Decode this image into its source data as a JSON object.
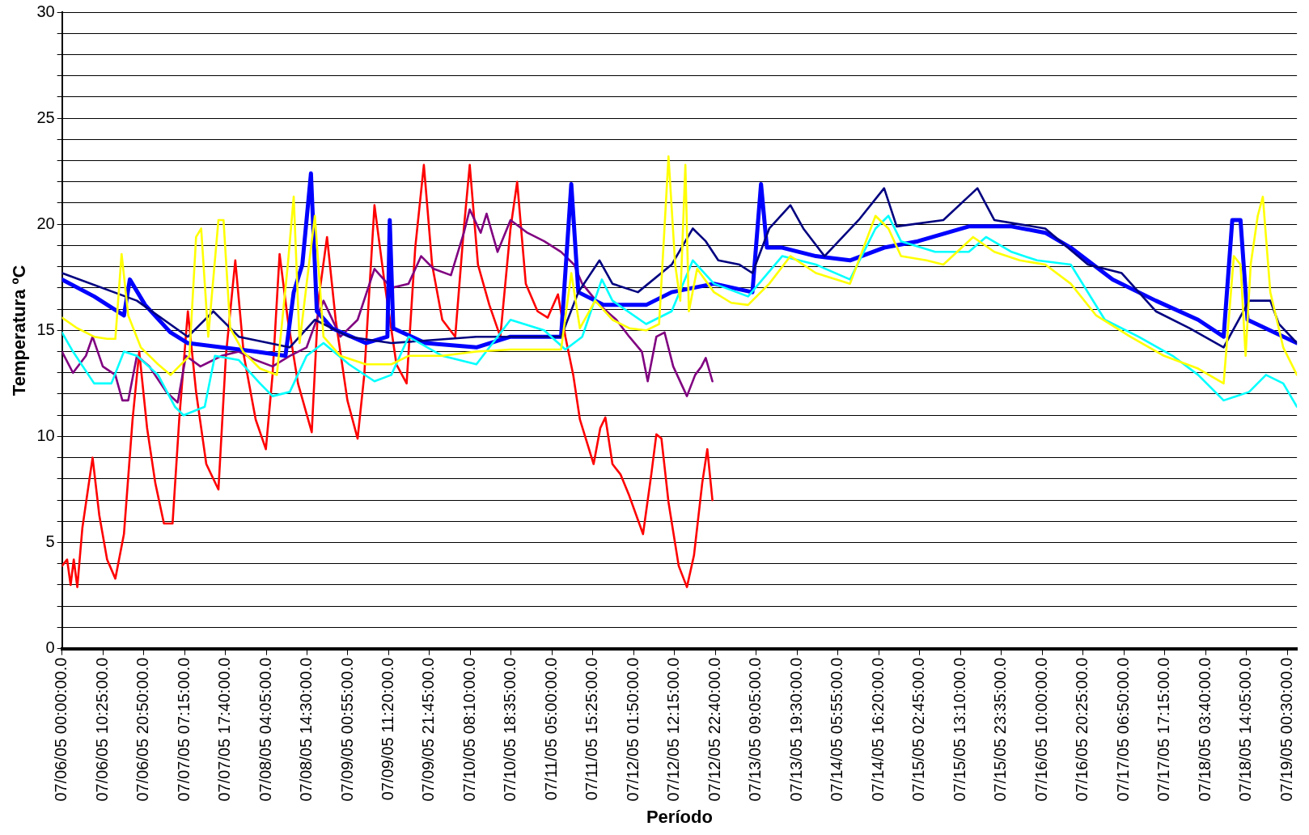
{
  "chart_data": {
    "type": "line",
    "xlabel": "Período",
    "ylabel": "Temperatura ºC",
    "xlim": [
      "--07-06T00:00",
      "--07-19T03:00"
    ],
    "ylim": [
      0,
      30
    ],
    "xticks": [
      {
        "value": "--07-06T00:00",
        "label": "07/06/05 00:00:00.0"
      },
      {
        "value": "--07-06T10:25",
        "label": "07/06/05 10:25:00.0"
      },
      {
        "value": "--07-06T20:50",
        "label": "07/06/05 20:50:00.0"
      },
      {
        "value": "--07-07T07:15",
        "label": "07/07/05 07:15:00.0"
      },
      {
        "value": "--07-07T17:40",
        "label": "07/07/05 17:40:00.0"
      },
      {
        "value": "--07-08T04:05",
        "label": "07/08/05 04:05:00.0"
      },
      {
        "value": "--07-08T14:30",
        "label": "07/08/05 14:30:00.0"
      },
      {
        "value": "--07-09T00:55",
        "label": "07/09/05 00:55:00.0"
      },
      {
        "value": "--07-09T11:20",
        "label": "07/09/05 11:20:00.0"
      },
      {
        "value": "--07-09T21:45",
        "label": "07/09/05 21:45:00.0"
      },
      {
        "value": "--07-10T08:10",
        "label": "07/10/05 08:10:00.0"
      },
      {
        "value": "--07-10T18:35",
        "label": "07/10/05 18:35:00.0"
      },
      {
        "value": "--07-11T05:00",
        "label": "07/11/05 05:00:00.0"
      },
      {
        "value": "--07-11T15:25",
        "label": "07/11/05 15:25:00.0"
      },
      {
        "value": "--07-12T01:50",
        "label": "07/12/05 01:50:00.0"
      },
      {
        "value": "--07-12T12:15",
        "label": "07/12/05 12:15:00.0"
      },
      {
        "value": "--07-12T22:40",
        "label": "07/12/05 22:40:00.0"
      },
      {
        "value": "--07-13T09:05",
        "label": "07/13/05 09:05:00.0"
      },
      {
        "value": "--07-13T19:30",
        "label": "07/13/05 19:30:00.0"
      },
      {
        "value": "--07-14T05:55",
        "label": "07/14/05 05:55:00.0"
      },
      {
        "value": "--07-14T16:20",
        "label": "07/14/05 16:20:00.0"
      },
      {
        "value": "--07-15T02:45",
        "label": "07/15/05 02:45:00.0"
      },
      {
        "value": "--07-15T13:10",
        "label": "07/15/05 13:10:00.0"
      },
      {
        "value": "--07-15T23:35",
        "label": "07/15/05 23:35:00.0"
      },
      {
        "value": "--07-16T10:00",
        "label": "07/16/05 10:00:00.0"
      },
      {
        "value": "--07-16T20:25",
        "label": "07/16/05 20:25:00.0"
      },
      {
        "value": "--07-17T06:50",
        "label": "07/17/05 06:50:00.0"
      },
      {
        "value": "--07-17T17:15",
        "label": "07/17/05 17:15:00.0"
      },
      {
        "value": "--07-18T03:40",
        "label": "07/18/05 03:40:00.0"
      },
      {
        "value": "--07-18T14:05",
        "label": "07/18/05 14:05:00.0"
      },
      {
        "value": "--07-19T00:30",
        "label": "07/19/05 00:30:00.0"
      }
    ],
    "yticks": [
      0,
      {
        "value": 1,
        "label": null
      },
      {
        "value": 2,
        "label": null
      },
      {
        "value": 3,
        "label": null
      },
      {
        "value": 4,
        "label": null
      },
      5,
      {
        "value": 6,
        "label": null
      },
      {
        "value": 7,
        "label": null
      },
      {
        "value": 8,
        "label": null
      },
      {
        "value": 9,
        "label": null
      },
      10,
      {
        "value": 11,
        "label": null
      },
      {
        "value": 12,
        "label": null
      },
      {
        "value": 13,
        "label": null
      },
      {
        "value": 14,
        "label": null
      },
      15,
      {
        "value": 16,
        "label": null
      },
      {
        "value": 17,
        "label": null
      },
      {
        "value": 18,
        "label": null
      },
      {
        "value": 19,
        "label": null
      },
      20,
      {
        "value": 21,
        "label": null
      },
      {
        "value": 22,
        "label": null
      },
      {
        "value": 23,
        "label": null
      },
      {
        "value": 24,
        "label": null
      },
      25,
      {
        "value": 26,
        "label": null
      },
      {
        "value": 27,
        "label": null
      },
      {
        "value": 28,
        "label": null
      },
      {
        "value": 29,
        "label": null
      },
      30
    ],
    "grid": "y",
    "legend": false,
    "marker": "none",
    "line_style": "solid",
    "series": [
      {
        "color": "#ffff00",
        "x": [
          "--07-06T00:00",
          "--07-06T03:54",
          "--07-06T08:12",
          "--07-06T11:30",
          "--07-06T13:36",
          "--07-06T15:12",
          "--07-06T16:54",
          "--07-06T20:06",
          "--07-07T00:30",
          "--07-07T03:42",
          "--07-07T08:30",
          "--07-07T10:12",
          "--07-07T11:30",
          "--07-07T13:18",
          "--07-07T15:54",
          "--07-07T17:12",
          "--07-07T18:54",
          "--07-07T22:12",
          "--07-08T02:30",
          "--07-08T06:48",
          "--07-08T09:36",
          "--07-08T11:06",
          "--07-08T12:36",
          "--07-08T14:24",
          "--07-08T16:30",
          "--07-08T18:42",
          "--07-08T23:00",
          "--07-09T05:30",
          "--07-09T12:00",
          "--07-09T16:24",
          "--07-10T01:00",
          "--07-10T09:42",
          "--07-10T18:24",
          "--07-11T07:18",
          "--07-11T09:54",
          "--07-11T12:06",
          "--07-11T16:00",
          "--07-11T20:24",
          "--07-12T00:42",
          "--07-12T05:00",
          "--07-12T08:18",
          "--07-12T10:42",
          "--07-12T12:24",
          "--07-12T13:42",
          "--07-12T15:00",
          "--07-12T15:54",
          "--07-12T18:00",
          "--07-12T22:18",
          "--07-13T02:42",
          "--07-13T07:00",
          "--07-13T12:24",
          "--07-13T17:48",
          "--07-14T00:18",
          "--07-14T09:00",
          "--07-14T15:30",
          "--07-14T18:48",
          "--07-14T22:00",
          "--07-15T04:30",
          "--07-15T08:48",
          "--07-15T16:24",
          "--07-15T21:48",
          "--07-16T04:18",
          "--07-16T10:48",
          "--07-16T17:18",
          "--07-16T23:48",
          "--07-17T08:30",
          "--07-17T17:06",
          "--07-18T01:48",
          "--07-18T08:18",
          "--07-18T10:54",
          "--07-18T12:36",
          "--07-18T13:54",
          "--07-18T15:12",
          "--07-18T17:00",
          "--07-18T18:18",
          "--07-18T20:12",
          "--07-18T23:30",
          "--07-19T03:00"
        ],
        "values": [
          15.6,
          15.1,
          14.7,
          14.6,
          14.6,
          18.6,
          15.7,
          14.2,
          13.4,
          12.9,
          13.8,
          19.4,
          19.8,
          14.7,
          20.2,
          20.2,
          15.1,
          14.0,
          13.2,
          12.9,
          18.1,
          21.3,
          14.4,
          17.2,
          20.4,
          14.7,
          13.8,
          13.4,
          13.4,
          13.8,
          13.8,
          14.0,
          14.1,
          14.1,
          17.7,
          15.1,
          16.4,
          15.5,
          15.1,
          15.0,
          15.3,
          23.2,
          18.1,
          16.4,
          22.8,
          15.9,
          17.9,
          16.8,
          16.3,
          16.2,
          17.2,
          18.5,
          17.7,
          17.2,
          20.4,
          19.8,
          18.5,
          18.3,
          18.1,
          19.4,
          18.7,
          18.3,
          18.1,
          17.2,
          15.7,
          14.7,
          13.8,
          13.2,
          12.5,
          18.5,
          18.1,
          13.8,
          18.1,
          20.4,
          21.3,
          16.8,
          14.2,
          12.9
        ]
      },
      {
        "color": "#00ffff",
        "x": [
          "--07-06T00:00",
          "--07-06T02:48",
          "--07-06T08:12",
          "--07-06T12:36",
          "--07-06T15:48",
          "--07-06T19:06",
          "--07-07T00:30",
          "--07-07T04:48",
          "--07-07T07:00",
          "--07-07T12:24",
          "--07-07T15:00",
          "--07-07T21:06",
          "--07-08T02:30",
          "--07-08T05:42",
          "--07-08T10:06",
          "--07-08T14:24",
          "--07-08T18:42",
          "--07-09T01:12",
          "--07-09T07:42",
          "--07-09T12:00",
          "--07-09T16:24",
          "--07-10T01:00",
          "--07-10T09:42",
          "--07-10T18:24",
          "--07-11T03:00",
          "--07-11T08:24",
          "--07-11T12:42",
          "--07-11T14:54",
          "--07-11T17:42",
          "--07-11T20:24",
          "--07-12T05:00",
          "--07-12T11:30",
          "--07-12T16:54",
          "--07-12T22:18",
          "--07-13T07:00",
          "--07-13T15:42",
          "--07-14T00:18",
          "--07-14T09:00",
          "--07-14T15:30",
          "--07-14T18:48",
          "--07-14T22:00",
          "--07-15T06:42",
          "--07-15T15:18",
          "--07-15T19:42",
          "--07-16T02:12",
          "--07-16T08:42",
          "--07-16T17:18",
          "--07-17T02:00",
          "--07-17T10:36",
          "--07-17T19:18",
          "--07-18T01:48",
          "--07-18T08:18",
          "--07-18T14:48",
          "--07-18T19:06",
          "--07-18T23:30",
          "--07-19T03:00"
        ],
        "values": [
          14.9,
          14.0,
          12.5,
          12.5,
          14.0,
          13.8,
          12.9,
          11.4,
          11.0,
          11.4,
          13.8,
          13.6,
          12.5,
          11.9,
          12.1,
          13.8,
          14.4,
          13.4,
          12.6,
          12.9,
          14.7,
          13.8,
          13.4,
          15.5,
          15.0,
          14.1,
          14.7,
          15.9,
          17.4,
          16.4,
          15.3,
          15.9,
          18.3,
          17.2,
          16.6,
          18.5,
          18.1,
          17.4,
          19.8,
          20.4,
          19.2,
          18.7,
          18.7,
          19.4,
          18.7,
          18.3,
          18.1,
          15.5,
          14.7,
          13.8,
          12.9,
          11.7,
          12.1,
          12.9,
          12.5,
          11.4
        ]
      },
      {
        "color": "#000080",
        "x": [
          "--07-06T00:00",
          "--07-06T19:06",
          "--07-07T08:06",
          "--07-07T14:36",
          "--07-07T21:06",
          "--07-08T10:06",
          "--07-08T16:30",
          "--07-09T01:12",
          "--07-09T12:00",
          "--07-10T09:42",
          "--07-11T07:18",
          "--07-11T11:42",
          "--07-11T17:06",
          "--07-11T20:24",
          "--07-12T02:54",
          "--07-12T11:30",
          "--07-12T16:54",
          "--07-12T20:12",
          "--07-12T23:24",
          "--07-13T04:48",
          "--07-13T08:06",
          "--07-13T12:24",
          "--07-13T17:48",
          "--07-13T21:06",
          "--07-14T02:30",
          "--07-14T11:12",
          "--07-14T17:42",
          "--07-14T20:54",
          "--07-15T08:48",
          "--07-15T17:30",
          "--07-15T21:48",
          "--07-16T10:48",
          "--07-16T21:42",
          "--07-17T06:18",
          "--07-17T15:00",
          "--07-17T23:36",
          "--07-18T08:18",
          "--07-18T14:48",
          "--07-18T20:12",
          "--07-18T22:24",
          "--07-19T03:00"
        ],
        "values": [
          17.7,
          16.4,
          14.7,
          15.9,
          14.7,
          14.2,
          15.5,
          14.7,
          14.4,
          14.7,
          14.7,
          16.8,
          18.3,
          17.2,
          16.8,
          18.1,
          19.8,
          19.2,
          18.3,
          18.1,
          17.7,
          19.8,
          20.9,
          19.8,
          18.5,
          20.2,
          21.7,
          19.9,
          20.2,
          21.7,
          20.2,
          19.8,
          18.1,
          17.7,
          15.9,
          15.1,
          14.2,
          16.4,
          16.4,
          15.3,
          14.4
        ]
      },
      {
        "color": "#0000ff",
        "x": [
          "--07-06T00:00",
          "--07-06T08:12",
          "--07-06T15:48",
          "--07-06T17:18",
          "--07-06T21:12",
          "--07-07T03:42",
          "--07-07T08:06",
          "--07-07T16:42",
          "--07-08T01:24",
          "--07-08T09:00",
          "--07-08T11:06",
          "--07-08T13:18",
          "--07-08T15:30",
          "--07-08T17:00",
          "--07-08T20:54",
          "--07-09T05:30",
          "--07-09T11:00",
          "--07-09T11:36",
          "--07-09T12:30",
          "--07-09T20:42",
          "--07-10T09:42",
          "--07-10T18:24",
          "--07-11T07:18",
          "--07-11T09:54",
          "--07-11T11:42",
          "--07-11T18:12",
          "--07-12T05:00",
          "--07-12T11:30",
          "--07-12T22:18",
          "--07-13T08:06",
          "--07-13T10:18",
          "--07-13T11:48",
          "--07-13T15:42",
          "--07-14T00:18",
          "--07-14T09:00",
          "--07-14T17:42",
          "--07-15T02:18",
          "--07-15T15:18",
          "--07-16T02:12",
          "--07-16T10:48",
          "--07-16T17:18",
          "--07-17T04:00",
          "--07-17T15:00",
          "--07-18T01:48",
          "--07-18T08:18",
          "--07-18T10:30",
          "--07-18T12:36",
          "--07-18T14:24",
          "--07-18T21:18",
          "--07-19T03:00"
        ],
        "values": [
          17.4,
          16.6,
          15.7,
          17.4,
          16.2,
          14.9,
          14.4,
          14.2,
          14.0,
          13.8,
          16.8,
          18.1,
          22.4,
          15.9,
          15.1,
          14.4,
          14.7,
          20.2,
          15.1,
          14.4,
          14.2,
          14.7,
          14.7,
          21.9,
          16.8,
          16.2,
          16.2,
          16.8,
          17.2,
          16.8,
          21.9,
          18.9,
          18.9,
          18.5,
          18.3,
          18.9,
          19.2,
          19.9,
          19.9,
          19.6,
          18.9,
          17.4,
          16.4,
          15.5,
          14.7,
          20.2,
          20.2,
          15.5,
          14.9,
          14.4
        ]
      },
      {
        "color": "#800080",
        "x": [
          "--07-06T00:00",
          "--07-06T02:48",
          "--07-06T06:06",
          "--07-06T07:48",
          "--07-06T10:24",
          "--07-06T13:36",
          "--07-06T15:24",
          "--07-06T16:54",
          "--07-06T19:06",
          "--07-06T22:18",
          "--07-07T02:36",
          "--07-07T05:30",
          "--07-07T07:36",
          "--07-07T11:18",
          "--07-07T16:42",
          "--07-07T21:06",
          "--07-08T01:24",
          "--07-08T05:42",
          "--07-08T10:06",
          "--07-08T14:24",
          "--07-08T18:42",
          "--07-08T23:00",
          "--07-09T03:24",
          "--07-09T07:42",
          "--07-09T12:00",
          "--07-09T16:24",
          "--07-09T19:36",
          "--07-09T22:48",
          "--07-10T03:12",
          "--07-10T06:30",
          "--07-10T08:00",
          "--07-10T10:48",
          "--07-10T12:18",
          "--07-10T15:06",
          "--07-10T18:24",
          "--07-10T22:42",
          "--07-11T03:00",
          "--07-11T07:18",
          "--07-11T10:36",
          "--07-11T12:42",
          "--07-11T17:06",
          "--07-11T21:24",
          "--07-12T00:42",
          "--07-12T03:54",
          "--07-12T05:24",
          "--07-12T07:36",
          "--07-12T09:42",
          "--07-12T11:54",
          "--07-12T15:24",
          "--07-12T17:30",
          "--07-12T19:06",
          "--07-12T20:12",
          "--07-12T21:54"
        ],
        "values": [
          14.0,
          13.0,
          13.8,
          14.7,
          13.3,
          12.9,
          11.7,
          11.7,
          13.8,
          13.3,
          12.1,
          11.6,
          13.8,
          13.3,
          13.8,
          14.0,
          13.6,
          13.3,
          13.8,
          14.2,
          16.4,
          14.7,
          15.5,
          17.9,
          17.0,
          17.2,
          18.5,
          17.9,
          17.6,
          19.6,
          20.7,
          19.6,
          20.5,
          18.7,
          20.2,
          19.6,
          19.2,
          18.7,
          18.1,
          17.2,
          16.2,
          15.5,
          14.7,
          14.0,
          12.6,
          14.7,
          14.9,
          13.3,
          11.9,
          12.9,
          13.3,
          13.7,
          12.6
        ]
      },
      {
        "color": "#ff0000",
        "x": [
          "--07-06T00:00",
          "--07-06T01:18",
          "--07-06T02:12",
          "--07-06T03:00",
          "--07-06T03:54",
          "--07-06T05:12",
          "--07-06T07:48",
          "--07-06T09:30",
          "--07-06T11:30",
          "--07-06T13:36",
          "--07-06T15:48",
          "--07-06T18:00",
          "--07-06T19:42",
          "--07-06T21:42",
          "--07-06T23:48",
          "--07-07T02:00",
          "--07-07T04:12",
          "--07-07T05:54",
          "--07-07T08:06",
          "--07-07T10:12",
          "--07-07T12:48",
          "--07-07T15:54",
          "--07-07T17:48",
          "--07-07T20:12",
          "--07-07T22:24",
          "--07-08T01:24",
          "--07-08T04:00",
          "--07-08T05:42",
          "--07-08T07:30",
          "--07-08T09:36",
          "--07-08T12:12",
          "--07-08T15:42",
          "--07-08T17:24",
          "--07-08T19:36",
          "--07-08T21:48",
          "--07-09T00:48",
          "--07-09T03:24",
          "--07-09T05:06",
          "--07-09T07:42",
          "--07-09T10:18",
          "--07-09T13:18",
          "--07-09T15:54",
          "--07-09T18:06",
          "--07-09T20:18",
          "--07-09T22:24",
          "--07-10T01:00",
          "--07-10T04:18",
          "--07-10T06:30",
          "--07-10T08:00",
          "--07-10T10:06",
          "--07-10T13:00",
          "--07-10T15:48",
          "--07-10T18:24",
          "--07-10T20:06",
          "--07-10T22:18",
          "--07-11T01:18",
          "--07-11T03:54",
          "--07-11T06:30",
          "--07-11T08:24",
          "--07-11T10:24",
          "--07-11T12:06",
          "--07-11T15:36",
          "--07-11T17:18",
          "--07-11T18:36",
          "--07-11T20:24",
          "--07-11T22:30",
          "--07-12T00:42",
          "--07-12T04:12",
          "--07-12T06:18",
          "--07-12T07:36",
          "--07-12T08:54",
          "--07-12T10:42",
          "--07-12T13:18",
          "--07-12T15:24",
          "--07-12T17:12",
          "--07-12T19:18",
          "--07-12T20:36",
          "--07-12T21:54"
        ],
        "values": [
          3.9,
          4.2,
          3.0,
          4.2,
          2.9,
          5.7,
          9.0,
          6.3,
          4.2,
          3.3,
          5.4,
          10.8,
          14.0,
          10.4,
          7.8,
          5.9,
          5.9,
          10.8,
          15.9,
          12.1,
          8.7,
          7.5,
          13.8,
          18.3,
          13.8,
          10.8,
          9.4,
          12.9,
          18.6,
          15.5,
          12.5,
          10.2,
          16.4,
          19.4,
          15.5,
          11.7,
          9.9,
          12.9,
          20.9,
          17.2,
          13.4,
          12.5,
          18.9,
          22.8,
          18.1,
          15.5,
          14.7,
          19.8,
          22.8,
          18.1,
          16.2,
          14.7,
          19.8,
          22.0,
          17.2,
          15.9,
          15.6,
          16.7,
          14.7,
          12.9,
          10.8,
          8.7,
          10.4,
          10.9,
          8.7,
          8.2,
          7.2,
          5.4,
          8.2,
          10.1,
          9.9,
          6.9,
          3.9,
          2.9,
          4.4,
          7.8,
          9.4,
          7.0
        ]
      }
    ]
  }
}
